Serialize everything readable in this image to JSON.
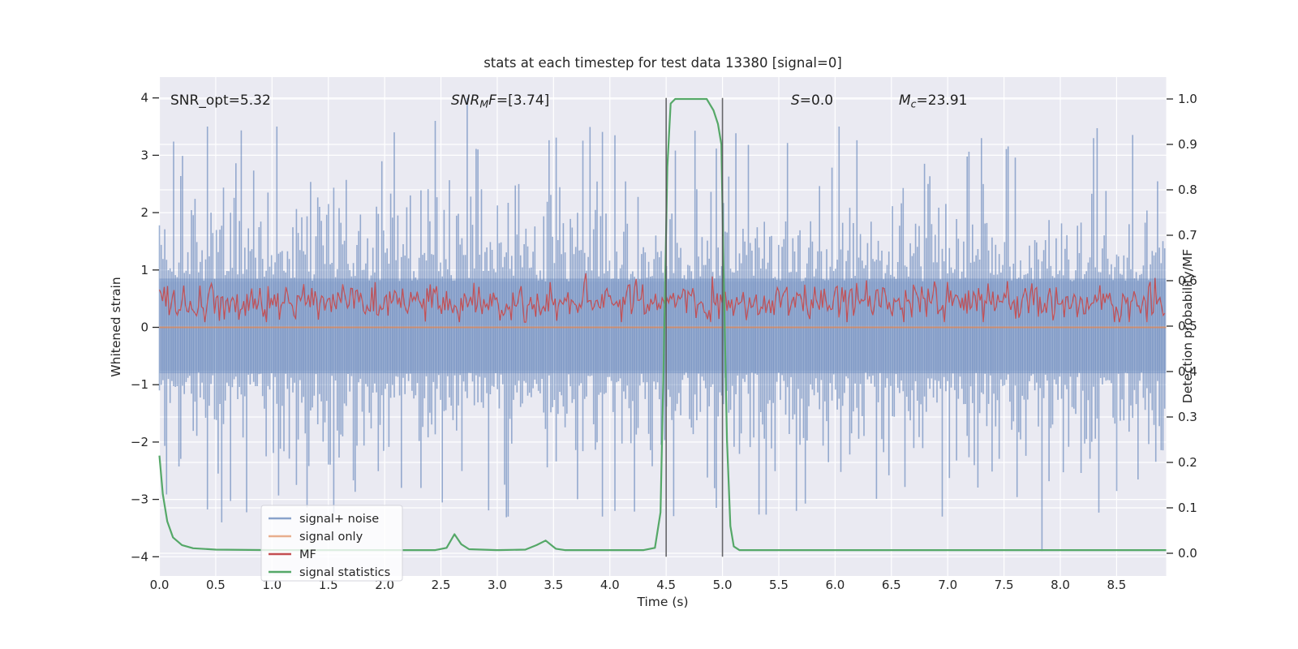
{
  "title": "stats at each timestep for test data 13380 [signal=0]",
  "annotations": {
    "snr_opt": {
      "text": "SNR_opt=5.32"
    },
    "snr_mf": {
      "pre": "SNR",
      "sub": "M",
      "mid": "F",
      "suf": "=[3.74]"
    },
    "s": {
      "pre": "S",
      "suf": "=0.0"
    },
    "mc": {
      "pre": "M",
      "sub": "c",
      "suf": "=23.91"
    }
  },
  "axes": {
    "x": {
      "label": "Time (s)",
      "ticks": [
        "0.0",
        "0.5",
        "1.0",
        "1.5",
        "2.0",
        "2.5",
        "3.0",
        "3.5",
        "4.0",
        "4.5",
        "5.0",
        "5.5",
        "6.0",
        "6.5",
        "7.0",
        "7.5",
        "8.0",
        "8.5"
      ],
      "tick_values": [
        0,
        0.5,
        1,
        1.5,
        2,
        2.5,
        3,
        3.5,
        4,
        4.5,
        5,
        5.5,
        6,
        6.5,
        7,
        7.5,
        8,
        8.5
      ]
    },
    "y_left": {
      "label": "Whitened strain",
      "ticks": [
        "4",
        "3",
        "2",
        "1",
        "0",
        "−1",
        "−2",
        "−3",
        "−4"
      ],
      "tick_values": [
        4,
        3,
        2,
        1,
        0,
        -1,
        -2,
        -3,
        -4
      ]
    },
    "y_right": {
      "label": "Detection probability/MF",
      "ticks": [
        "1.0",
        "0.9",
        "0.8",
        "0.7",
        "0.6",
        "0.5",
        "0.4",
        "0.3",
        "0.2",
        "0.1",
        "0.0"
      ],
      "tick_values": [
        1.0,
        0.9,
        0.8,
        0.7,
        0.6,
        0.5,
        0.4,
        0.3,
        0.2,
        0.1,
        0.0
      ]
    }
  },
  "legend": {
    "items": [
      {
        "label": "signal+ noise",
        "key": "signal_noise"
      },
      {
        "label": "signal only",
        "key": "signal_only"
      },
      {
        "label": "MF",
        "key": "mf"
      },
      {
        "label": "signal statistics",
        "key": "signal_statistics"
      }
    ]
  },
  "colors": {
    "signal_noise": "rgba(76,114,176,0.65)",
    "signal_only": "rgba(221,132,82,0.65)",
    "mf": "#C44E52",
    "signal_statistics": "#55A868",
    "blue": "#4C72B0",
    "orange": "#DD8452",
    "red": "#C44E52",
    "green": "#55A868",
    "axes_background": "#EAEAF2",
    "grid": "#FFFFFF",
    "vline": "#55555A",
    "text": "#262626"
  },
  "chart_data": {
    "type": "line",
    "title": "stats at each timestep for test data 13380 [signal=0]",
    "xlabel": "Time (s)",
    "ylabel_left": "Whitened strain",
    "ylabel_right": "Detection probability/MF",
    "xlim": [
      0,
      8.94
    ],
    "ylim_left": [
      -4.35,
      4.35
    ],
    "ylim_right": [
      0.0,
      1.0
    ],
    "grid": true,
    "legend_position": "lower-left",
    "vlines": {
      "x": [
        4.5,
        5.0
      ],
      "span_left_axis": [
        -4,
        4
      ],
      "color": "#55555A"
    },
    "series": [
      {
        "name": "signal+ noise",
        "axis": "left",
        "color": "#4C72B0",
        "style": "noise_band",
        "core_band": [
          -0.8,
          0.85
        ],
        "generation": {
          "seed": 20,
          "column_step_s": 0.0158,
          "base_up": 0.8,
          "base_down": 0.78,
          "tail_scale_up": 0.7,
          "tail_scale_down": 0.66,
          "soft_cap_up": 3.5,
          "soft_cap_down": 3.35
        },
        "notable_spikes_up": [
          [
            0.42,
            3.5
          ],
          [
            1.04,
            3.5
          ],
          [
            2.08,
            3.4
          ],
          [
            2.45,
            3.6
          ],
          [
            2.73,
            4.0
          ],
          [
            6.03,
            3.5
          ],
          [
            7.3,
            3.3
          ],
          [
            8.3,
            3.3
          ]
        ],
        "notable_spikes_down": [
          [
            0.55,
            3.4
          ],
          [
            3.1,
            3.3
          ],
          [
            4.05,
            3.2
          ],
          [
            5.65,
            3.2
          ],
          [
            6.95,
            3.3
          ],
          [
            7.83,
            3.9
          ]
        ]
      },
      {
        "name": "signal only",
        "axis": "left",
        "color": "#DD8452",
        "style": "constant",
        "value": 0
      },
      {
        "name": "MF",
        "axis": "left",
        "color": "#C44E52",
        "style": "noisy_line",
        "generation": {
          "seed": 77,
          "step_s": 0.0144,
          "mean": 0.44,
          "std": 0.17,
          "clip": [
            0.09,
            1.07
          ]
        }
      },
      {
        "name": "signal statistics",
        "axis": "right",
        "color": "#55A868",
        "style": "line",
        "points": [
          [
            0,
            0.215
          ],
          [
            0.03,
            0.13
          ],
          [
            0.07,
            0.07
          ],
          [
            0.12,
            0.035
          ],
          [
            0.2,
            0.018
          ],
          [
            0.3,
            0.011
          ],
          [
            0.5,
            0.008
          ],
          [
            1.0,
            0.007
          ],
          [
            1.5,
            0.007
          ],
          [
            2.0,
            0.007
          ],
          [
            2.45,
            0.007
          ],
          [
            2.55,
            0.012
          ],
          [
            2.62,
            0.042
          ],
          [
            2.68,
            0.02
          ],
          [
            2.75,
            0.009
          ],
          [
            3.0,
            0.007
          ],
          [
            3.25,
            0.008
          ],
          [
            3.35,
            0.018
          ],
          [
            3.43,
            0.028
          ],
          [
            3.52,
            0.01
          ],
          [
            3.6,
            0.007
          ],
          [
            4.0,
            0.007
          ],
          [
            4.3,
            0.007
          ],
          [
            4.4,
            0.012
          ],
          [
            4.45,
            0.09
          ],
          [
            4.48,
            0.45
          ],
          [
            4.51,
            0.85
          ],
          [
            4.54,
            0.99
          ],
          [
            4.58,
            1.0
          ],
          [
            4.86,
            1.0
          ],
          [
            4.92,
            0.975
          ],
          [
            4.96,
            0.945
          ],
          [
            4.99,
            0.9
          ],
          [
            5.01,
            0.62
          ],
          [
            5.04,
            0.25
          ],
          [
            5.07,
            0.06
          ],
          [
            5.1,
            0.015
          ],
          [
            5.15,
            0.007
          ],
          [
            6.0,
            0.007
          ],
          [
            7.0,
            0.007
          ],
          [
            8.0,
            0.007
          ],
          [
            8.94,
            0.007
          ]
        ]
      }
    ]
  }
}
